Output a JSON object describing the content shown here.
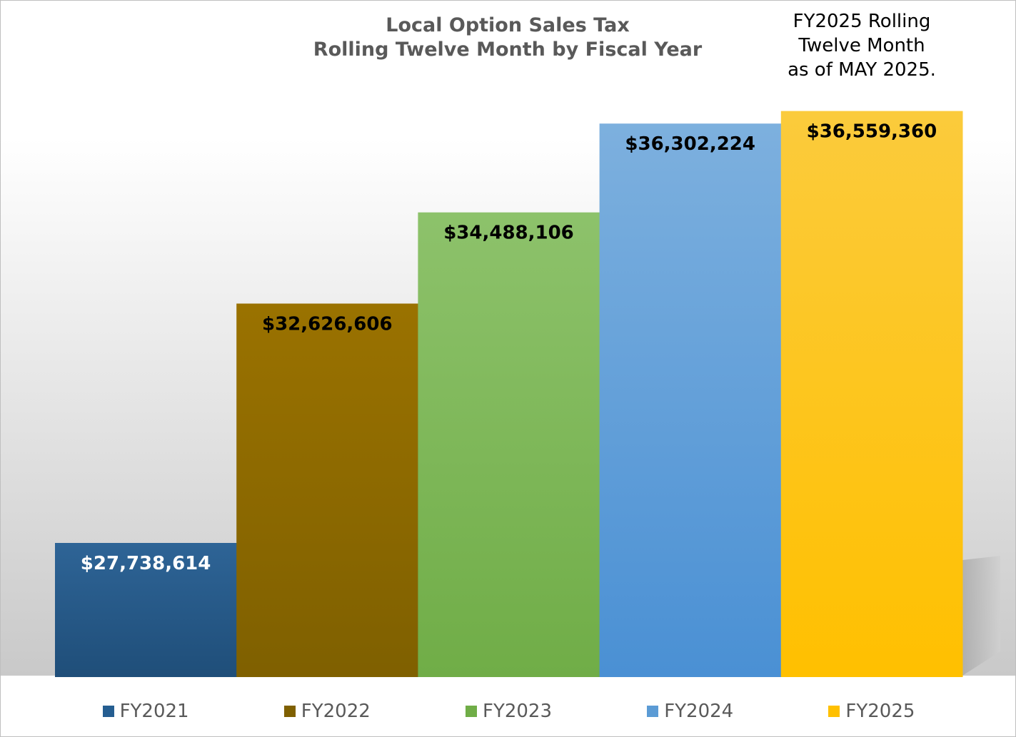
{
  "chart_data": {
    "type": "bar",
    "title": "Local Option Sales Tax",
    "subtitle": "Rolling Twelve Month by Fiscal Year",
    "annotation": [
      "FY2025 Rolling",
      "Twelve Month",
      "as of MAY 2025."
    ],
    "categories": [
      "FY2021",
      "FY2022",
      "FY2023",
      "FY2024",
      "FY2025"
    ],
    "values": [
      27738614,
      32626606,
      34488106,
      36302224,
      36559360
    ],
    "data_labels": [
      "$27,738,614",
      "$32,626,606",
      "$34,488,106",
      "$36,302,224",
      "$36,559,360"
    ],
    "ylim": [
      25000000,
      37500000
    ],
    "xlabel": "",
    "ylabel": "",
    "grid": false,
    "legend_position": "bottom",
    "colors": [
      {
        "top": "#2E6496",
        "bottom": "#1F4E79",
        "label": "#ffffff",
        "legend": "#255E91"
      },
      {
        "top": "#9A7200",
        "bottom": "#7F6000",
        "label": "#000000",
        "legend": "#7F6000"
      },
      {
        "top": "#8DC26B",
        "bottom": "#70AD47",
        "label": "#000000",
        "legend": "#70AD47"
      },
      {
        "top": "#7DB0DE",
        "bottom": "#4A90D4",
        "label": "#000000",
        "legend": "#5B9BD5"
      },
      {
        "top": "#FBCB3C",
        "bottom": "#FFC000",
        "label": "#000000",
        "legend": "#FFC000"
      }
    ]
  }
}
